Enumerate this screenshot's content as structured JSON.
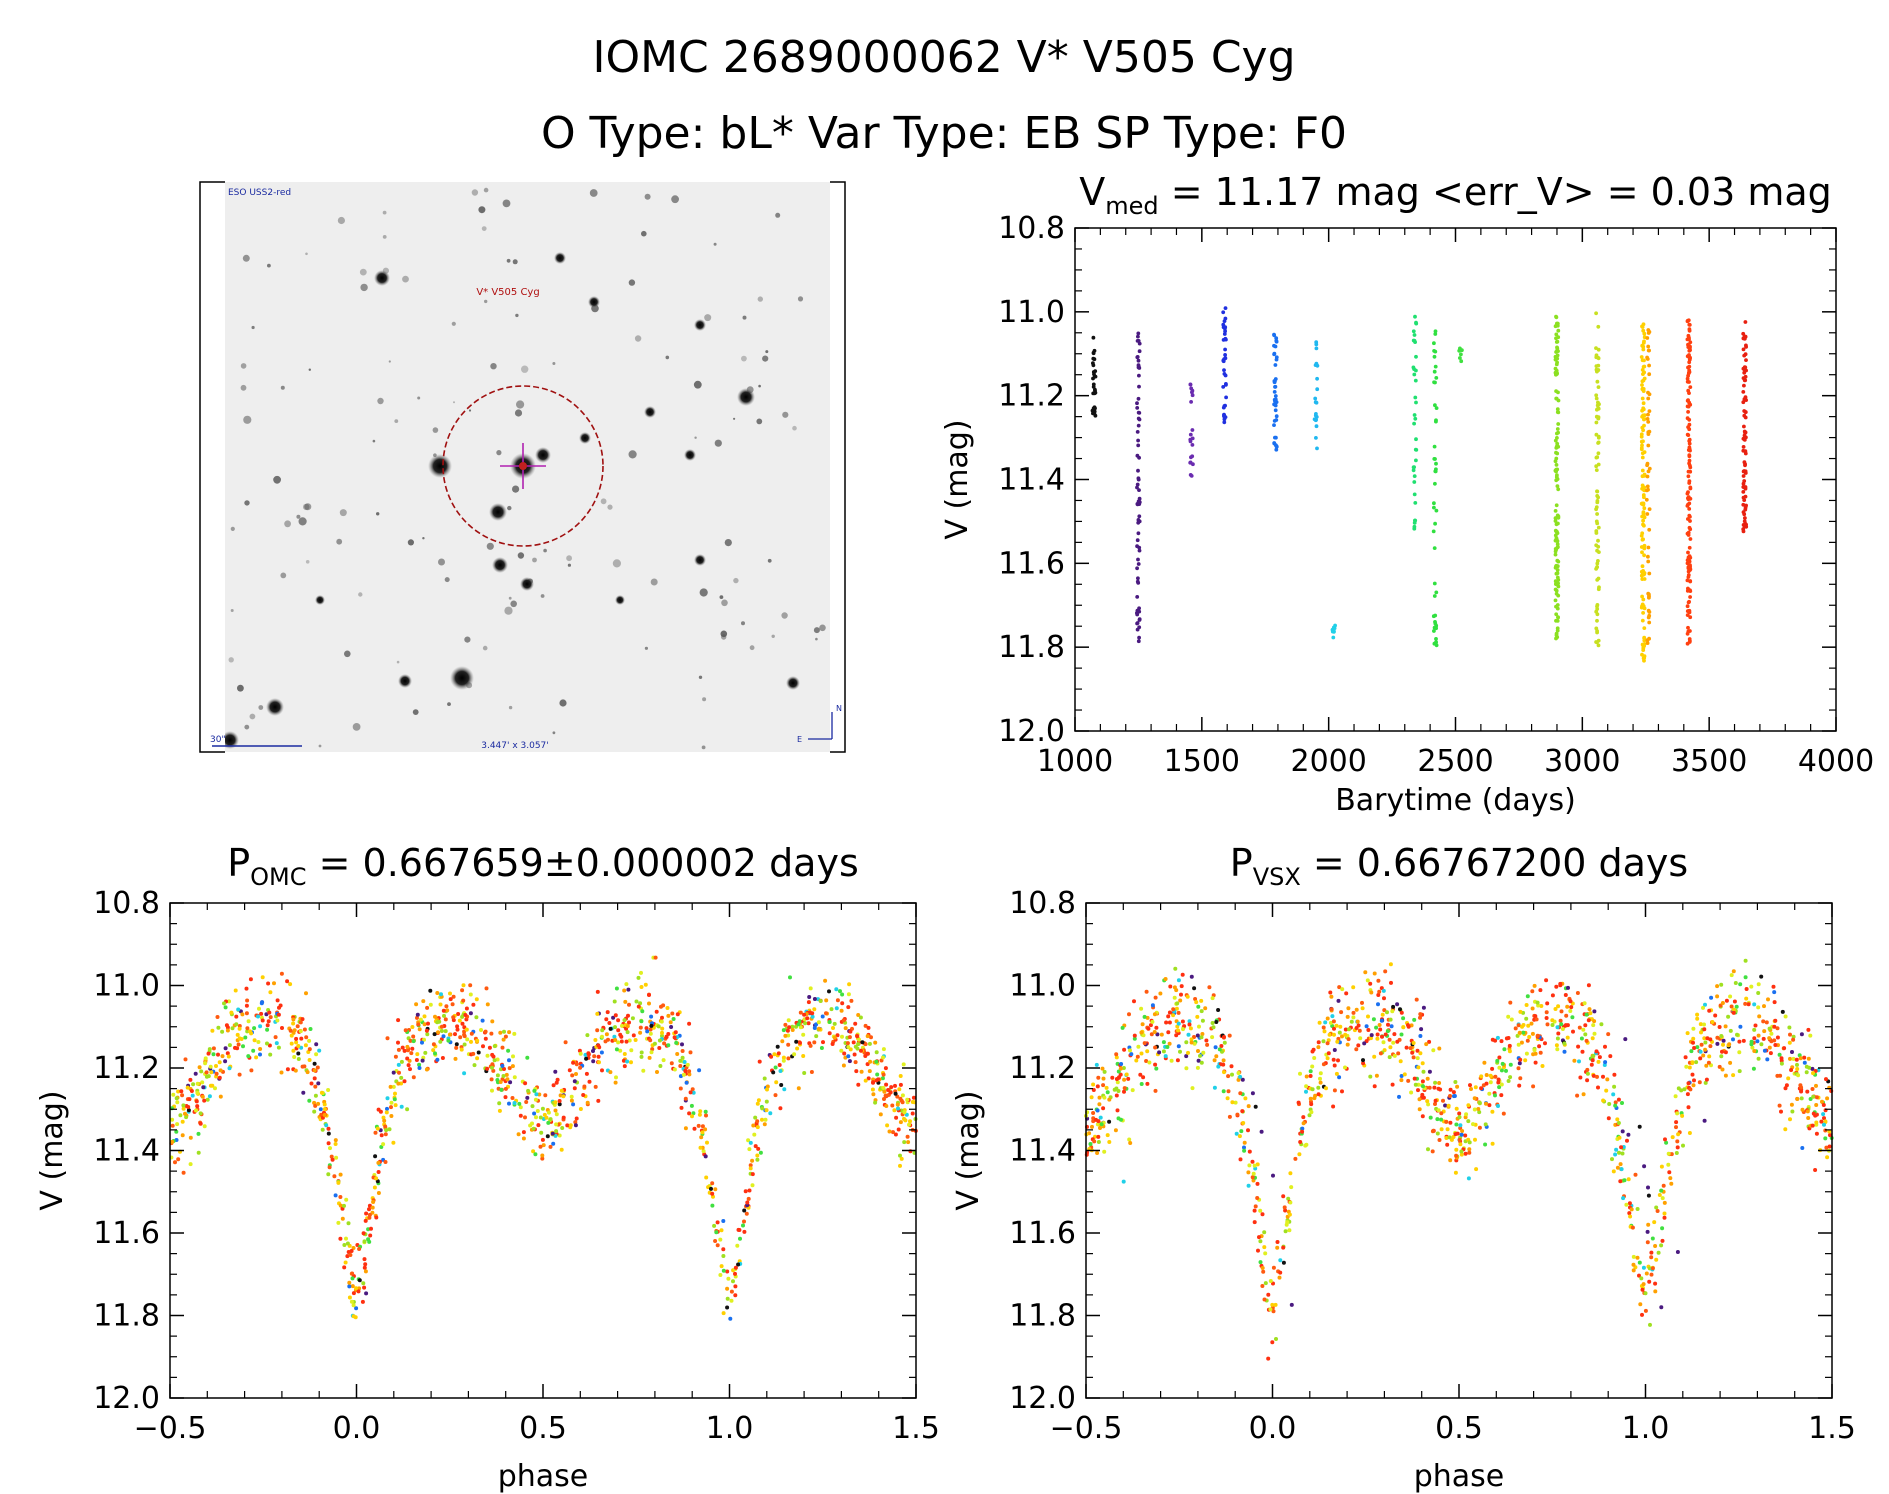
{
  "header": {
    "title_line1": "IOMC 2689000062    V* V505 Cyg",
    "title_line2": "O Type: bL*  Var Type: EB  SP Type: F0"
  },
  "image_panel": {
    "survey_label": "ESO USS2-red",
    "target_label": "V* V505 Cyg",
    "scale_label": "30\"",
    "size_label": "3.447' x 3.057'",
    "compass_north": "N",
    "compass_east": "E"
  },
  "chart_data": [
    {
      "id": "lightcurve",
      "type": "scatter",
      "title": {
        "main": "V",
        "sub": "med",
        "rest": " = 11.17 mag <err_V> = 0.03 mag"
      },
      "xlabel": "Barytime (days)",
      "ylabel": "V (mag)",
      "xlim": [
        1000,
        4000
      ],
      "ylim": [
        10.8,
        12.0
      ],
      "y_inverted": true,
      "xticks": [
        1000,
        1500,
        2000,
        2500,
        3000,
        3500,
        4000
      ],
      "yticks": [
        10.8,
        11.0,
        11.2,
        11.4,
        11.6,
        11.8,
        12.0
      ],
      "xtick_labels": [
        "1000",
        "1500",
        "2000",
        "2500",
        "3000",
        "3500",
        "4000"
      ],
      "ytick_labels": [
        "10.8",
        "11.0",
        "11.2",
        "11.4",
        "11.6",
        "11.8",
        "12.0"
      ],
      "grid": false,
      "legend": "none",
      "color_scale": "rainbow by observation time (black → purple → blue → cyan → green → yellow → orange → red)",
      "observation_groups": [
        {
          "x": 1075,
          "v_range": [
            11.06,
            11.25
          ],
          "n": 30,
          "color": "#111111"
        },
        {
          "x": 1250,
          "v_range": [
            11.05,
            11.8
          ],
          "n": 70,
          "color": "#4a1a80"
        },
        {
          "x": 1460,
          "v_range": [
            11.17,
            11.43
          ],
          "n": 20,
          "color": "#6a2cb0"
        },
        {
          "x": 1590,
          "v_range": [
            10.98,
            11.27
          ],
          "n": 35,
          "color": "#2030e0"
        },
        {
          "x": 1790,
          "v_range": [
            11.05,
            11.33
          ],
          "n": 40,
          "color": "#1a70f0"
        },
        {
          "x": 1950,
          "v_range": [
            11.07,
            11.35
          ],
          "n": 20,
          "color": "#20b8f0"
        },
        {
          "x": 2020,
          "v_range": [
            11.74,
            11.78
          ],
          "n": 8,
          "color": "#20d0e8"
        },
        {
          "x": 2340,
          "v_range": [
            11.01,
            11.55
          ],
          "n": 35,
          "color": "#20e070"
        },
        {
          "x": 2420,
          "v_range": [
            11.03,
            11.82
          ],
          "n": 45,
          "color": "#30e040"
        },
        {
          "x": 2520,
          "v_range": [
            11.08,
            11.12
          ],
          "n": 6,
          "color": "#40e040"
        },
        {
          "x": 2900,
          "v_range": [
            11.0,
            11.78
          ],
          "n": 130,
          "color": "#8be020"
        },
        {
          "x": 3060,
          "v_range": [
            11.0,
            11.8
          ],
          "n": 80,
          "color": "#c8e020"
        },
        {
          "x": 3240,
          "v_range": [
            11.02,
            11.85
          ],
          "n": 120,
          "color": "#ffd000"
        },
        {
          "x": 3260,
          "v_range": [
            11.03,
            11.8
          ],
          "n": 50,
          "color": "#ffa000"
        },
        {
          "x": 3420,
          "v_range": [
            11.02,
            11.8
          ],
          "n": 140,
          "color": "#ff4010"
        },
        {
          "x": 3640,
          "v_range": [
            11.02,
            11.53
          ],
          "n": 80,
          "color": "#e82010"
        }
      ]
    },
    {
      "id": "fold_omc",
      "type": "scatter",
      "title": {
        "main": "P",
        "sub": "OMC",
        "rest": " = 0.667659±0.000002 days"
      },
      "xlabel": "phase",
      "ylabel": "V (mag)",
      "xlim": [
        -0.5,
        1.5
      ],
      "ylim": [
        10.8,
        12.0
      ],
      "y_inverted": true,
      "xticks": [
        -0.5,
        0.0,
        0.5,
        1.0,
        1.5
      ],
      "yticks": [
        10.8,
        11.0,
        11.2,
        11.4,
        11.6,
        11.8,
        12.0
      ],
      "xtick_labels": [
        "−0.5",
        "0.0",
        "0.5",
        "1.0",
        "1.5"
      ],
      "ytick_labels": [
        "10.8",
        "11.0",
        "11.2",
        "11.4",
        "11.6",
        "11.8",
        "12.0"
      ],
      "grid": false,
      "legend": "none",
      "curve": {
        "phase": [
          0.0,
          0.03,
          0.06,
          0.1,
          0.15,
          0.2,
          0.25,
          0.3,
          0.35,
          0.4,
          0.45,
          0.5,
          0.55,
          0.6,
          0.65,
          0.7,
          0.75,
          0.8,
          0.85,
          0.9,
          0.94,
          0.97,
          1.0
        ],
        "v": [
          11.76,
          11.62,
          11.42,
          11.24,
          11.14,
          11.1,
          11.08,
          11.1,
          11.14,
          11.22,
          11.3,
          11.34,
          11.3,
          11.22,
          11.14,
          11.1,
          11.08,
          11.1,
          11.14,
          11.24,
          11.42,
          11.62,
          11.76
        ]
      },
      "scatter_mag": 0.05,
      "phase_shift_purple": 0.0
    },
    {
      "id": "fold_vsx",
      "type": "scatter",
      "title": {
        "main": "P",
        "sub": "VSX",
        "rest": " = 0.66767200 days"
      },
      "xlabel": "phase",
      "ylabel": "V (mag)",
      "xlim": [
        -0.5,
        1.5
      ],
      "ylim": [
        10.8,
        12.0
      ],
      "y_inverted": true,
      "xticks": [
        -0.5,
        0.0,
        0.5,
        1.0,
        1.5
      ],
      "yticks": [
        10.8,
        11.0,
        11.2,
        11.4,
        11.6,
        11.8,
        12.0
      ],
      "xtick_labels": [
        "−0.5",
        "0.0",
        "0.5",
        "1.0",
        "1.5"
      ],
      "ytick_labels": [
        "10.8",
        "11.0",
        "11.2",
        "11.4",
        "11.6",
        "11.8",
        "12.0"
      ],
      "grid": false,
      "legend": "none",
      "curve": {
        "phase": [
          0.0,
          0.03,
          0.06,
          0.1,
          0.15,
          0.2,
          0.25,
          0.3,
          0.35,
          0.4,
          0.45,
          0.5,
          0.55,
          0.6,
          0.65,
          0.7,
          0.75,
          0.8,
          0.85,
          0.9,
          0.94,
          0.97,
          1.0
        ],
        "v": [
          11.76,
          11.62,
          11.42,
          11.24,
          11.14,
          11.1,
          11.08,
          11.1,
          11.14,
          11.22,
          11.3,
          11.34,
          11.3,
          11.22,
          11.14,
          11.1,
          11.08,
          11.1,
          11.14,
          11.24,
          11.42,
          11.62,
          11.76
        ]
      },
      "scatter_mag": 0.06,
      "phase_shift_purple": 0.05
    }
  ]
}
